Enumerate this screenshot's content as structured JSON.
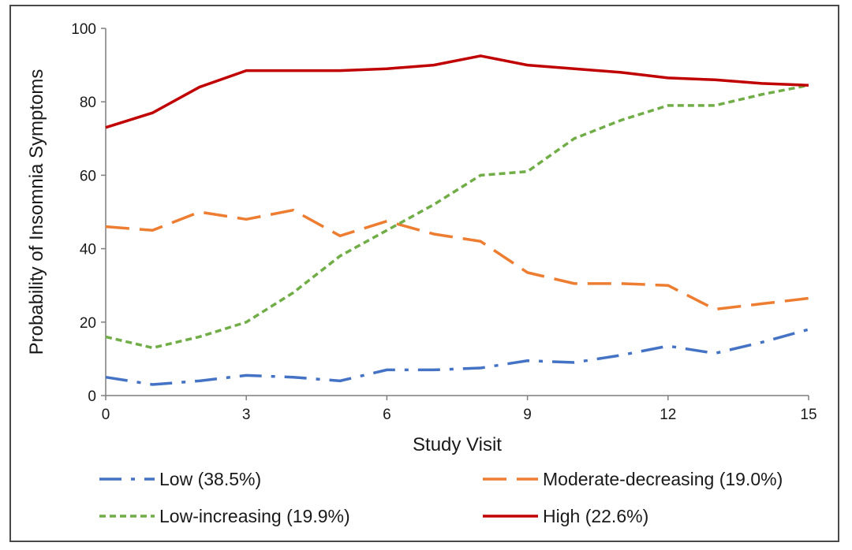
{
  "chart_data": {
    "type": "line",
    "xlabel": "Study Visit",
    "ylabel": "Probability of Insomnia Symptoms",
    "xlim": [
      0,
      15
    ],
    "ylim": [
      0,
      100
    ],
    "x_ticks": [
      "0",
      "3",
      "6",
      "9",
      "12",
      "15"
    ],
    "y_ticks": [
      "0",
      "20",
      "40",
      "60",
      "80",
      "100"
    ],
    "grid": false,
    "legend_position": "bottom",
    "x": [
      0,
      1,
      2,
      3,
      4,
      5,
      6,
      7,
      8,
      9,
      10,
      11,
      12,
      13,
      14,
      15
    ],
    "series": [
      {
        "name": "Low (38.5%)",
        "color": "#4472c4",
        "style": "dash-dot",
        "values": [
          5,
          3,
          4,
          5.5,
          5,
          4,
          7,
          7,
          7.5,
          9.5,
          9,
          11,
          13.5,
          11.5,
          14.5,
          18
        ]
      },
      {
        "name": "Moderate-decreasing (19.0%)",
        "color": "#ed7d31",
        "style": "long-dash",
        "values": [
          46,
          45,
          50,
          48,
          50.5,
          43.5,
          47.5,
          44,
          42,
          33.5,
          30.5,
          30.5,
          30,
          23.5,
          25,
          26.5
        ]
      },
      {
        "name": "Low-increasing (19.9%)",
        "color": "#70ad47",
        "style": "short-dash",
        "values": [
          16,
          13,
          16,
          20,
          28,
          38,
          45,
          52,
          60,
          61,
          70,
          75,
          79,
          79,
          82,
          84.5
        ]
      },
      {
        "name": "High (22.6%)",
        "color": "#c00000",
        "style": "solid",
        "values": [
          73,
          77,
          84,
          88.5,
          88.5,
          88.5,
          89,
          90,
          92.5,
          90,
          89,
          88,
          86.5,
          86,
          85,
          84.5
        ]
      }
    ]
  }
}
